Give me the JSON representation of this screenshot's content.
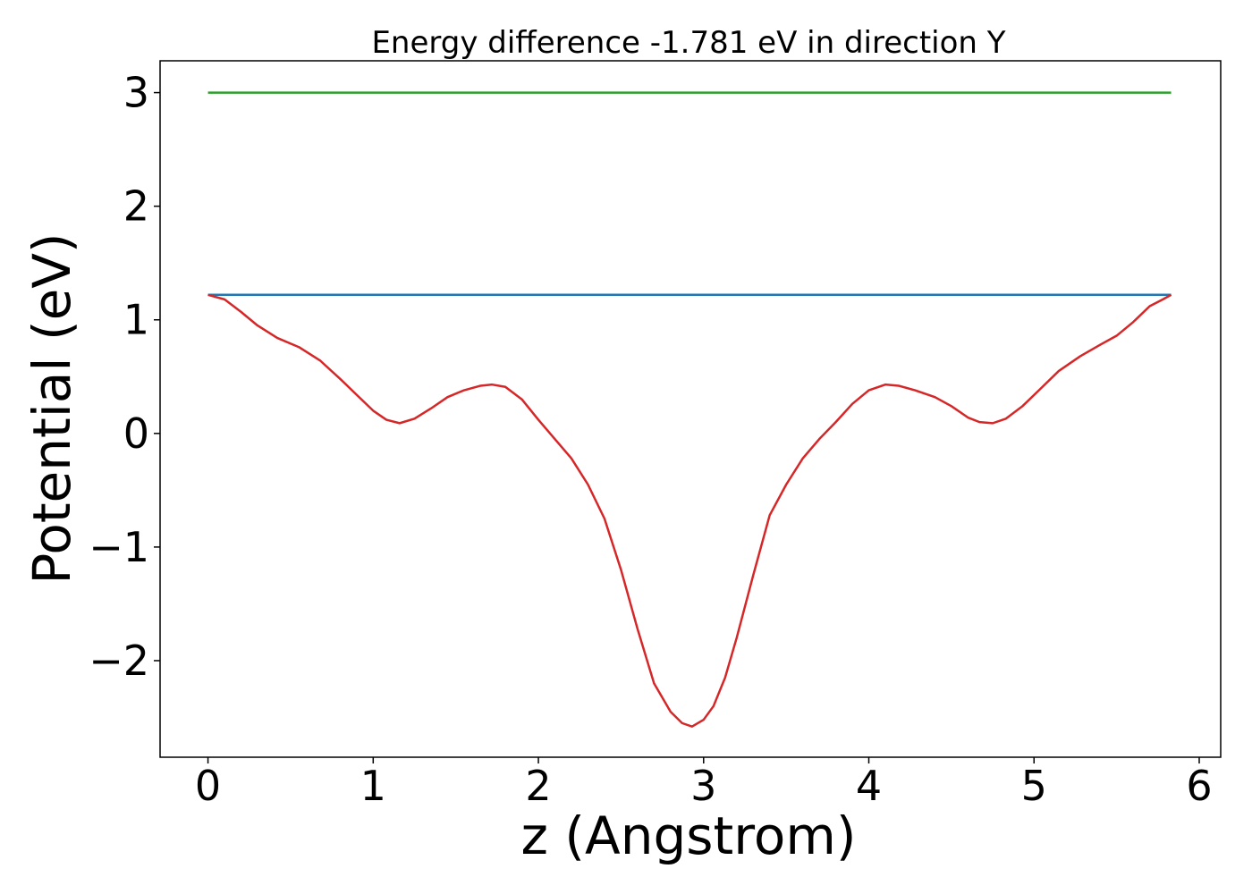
{
  "chart_data": {
    "type": "line",
    "title": "Energy difference -1.781 eV in direction Y",
    "xlabel": "z (Angstrom)",
    "ylabel": "Potential (eV)",
    "xlim": [
      -0.29,
      6.13
    ],
    "ylim": [
      -2.85,
      3.28
    ],
    "xticks": [
      0,
      1,
      2,
      3,
      4,
      5,
      6
    ],
    "xtick_labels": [
      "0",
      "1",
      "2",
      "3",
      "4",
      "5",
      "6"
    ],
    "yticks": [
      -2,
      -1,
      0,
      1,
      2,
      3
    ],
    "ytick_labels": [
      "−2",
      "−1",
      "0",
      "1",
      "2",
      "3"
    ],
    "grid": false,
    "legend": "none",
    "series": [
      {
        "color": "#2ca02c",
        "x": [
          0,
          5.83
        ],
        "y": [
          3.0,
          3.0
        ]
      },
      {
        "color": "#1f77b4",
        "x": [
          0,
          5.83
        ],
        "y": [
          1.22,
          1.22
        ]
      },
      {
        "color": "#d62728",
        "x": [
          0,
          0.1,
          0.2,
          0.3,
          0.42,
          0.55,
          0.68,
          0.8,
          0.9,
          1.0,
          1.08,
          1.16,
          1.25,
          1.35,
          1.45,
          1.55,
          1.65,
          1.72,
          1.8,
          1.9,
          2.0,
          2.1,
          2.2,
          2.3,
          2.4,
          2.5,
          2.6,
          2.7,
          2.8,
          2.87,
          2.93,
          3.0,
          3.06,
          3.13,
          3.2,
          3.3,
          3.4,
          3.5,
          3.6,
          3.7,
          3.8,
          3.9,
          4.0,
          4.1,
          4.18,
          4.28,
          4.4,
          4.5,
          4.6,
          4.67,
          4.75,
          4.83,
          4.93,
          5.03,
          5.15,
          5.28,
          5.4,
          5.5,
          5.6,
          5.7,
          5.78,
          5.83
        ],
        "y": [
          1.22,
          1.18,
          1.07,
          0.95,
          0.84,
          0.76,
          0.64,
          0.48,
          0.34,
          0.2,
          0.12,
          0.09,
          0.13,
          0.22,
          0.32,
          0.38,
          0.42,
          0.43,
          0.41,
          0.3,
          0.12,
          -0.05,
          -0.22,
          -0.45,
          -0.75,
          -1.2,
          -1.72,
          -2.2,
          -2.45,
          -2.55,
          -2.58,
          -2.52,
          -2.4,
          -2.15,
          -1.8,
          -1.25,
          -0.72,
          -0.45,
          -0.22,
          -0.05,
          0.1,
          0.26,
          0.38,
          0.43,
          0.42,
          0.38,
          0.32,
          0.24,
          0.14,
          0.1,
          0.09,
          0.13,
          0.24,
          0.38,
          0.55,
          0.68,
          0.78,
          0.86,
          0.98,
          1.12,
          1.18,
          1.22
        ]
      }
    ]
  }
}
